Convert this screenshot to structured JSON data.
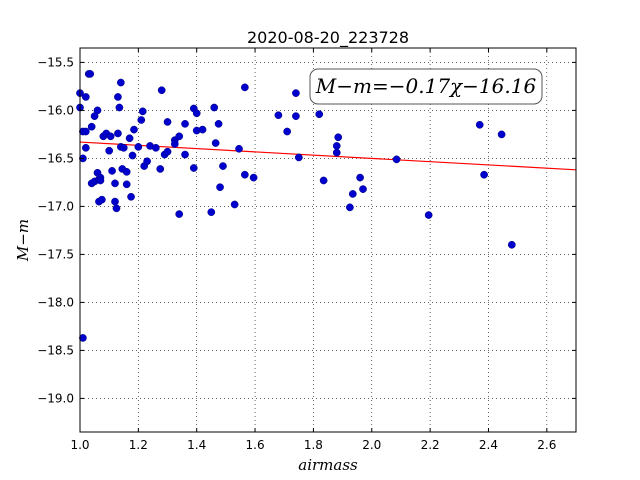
{
  "chart_data": {
    "type": "scatter",
    "title": "2020-08-20_223728",
    "xlabel": "airmass",
    "ylabel": "M−m",
    "xlim": [
      1.0,
      2.7
    ],
    "ylim": [
      -19.35,
      -15.35
    ],
    "y_inverted": false,
    "grid": true,
    "x_ticks": [
      1.0,
      1.2,
      1.4,
      1.6,
      1.8,
      2.0,
      2.2,
      2.4,
      2.6
    ],
    "x_tick_labels": [
      "1.0",
      "1.2",
      "1.4",
      "1.6",
      "1.8",
      "2.0",
      "2.2",
      "2.4",
      "2.6"
    ],
    "y_ticks": [
      -15.5,
      -16.0,
      -16.5,
      -17.0,
      -17.5,
      -18.0,
      -18.5,
      -19.0
    ],
    "y_tick_labels": [
      "−15.5",
      "−16.0",
      "−16.5",
      "−17.0",
      "−17.5",
      "−18.0",
      "−18.5",
      "−19.0"
    ],
    "annotation": "M−m=−0.17χ−16.16",
    "fit_line": {
      "slope": -0.17,
      "intercept": -16.16,
      "color": "#ff0000"
    },
    "point_color": "#0000cc",
    "points": [
      [
        1.0,
        -15.82
      ],
      [
        1.0,
        -15.97
      ],
      [
        1.01,
        -16.22
      ],
      [
        1.01,
        -16.5
      ],
      [
        1.01,
        -18.37
      ],
      [
        1.02,
        -15.86
      ],
      [
        1.02,
        -16.22
      ],
      [
        1.02,
        -16.39
      ],
      [
        1.03,
        -15.62
      ],
      [
        1.035,
        -15.62
      ],
      [
        1.04,
        -16.17
      ],
      [
        1.04,
        -16.76
      ],
      [
        1.05,
        -16.06
      ],
      [
        1.05,
        -16.74
      ],
      [
        1.06,
        -16.0
      ],
      [
        1.06,
        -16.65
      ],
      [
        1.065,
        -16.72
      ],
      [
        1.065,
        -16.95
      ],
      [
        1.07,
        -16.7
      ],
      [
        1.07,
        -16.73
      ],
      [
        1.075,
        -16.93
      ],
      [
        1.08,
        -16.27
      ],
      [
        1.09,
        -16.24
      ],
      [
        1.1,
        -16.42
      ],
      [
        1.105,
        -16.27
      ],
      [
        1.11,
        -16.63
      ],
      [
        1.12,
        -16.76
      ],
      [
        1.12,
        -16.95
      ],
      [
        1.125,
        -17.02
      ],
      [
        1.13,
        -15.86
      ],
      [
        1.13,
        -16.24
      ],
      [
        1.135,
        -15.97
      ],
      [
        1.14,
        -15.71
      ],
      [
        1.14,
        -16.38
      ],
      [
        1.145,
        -16.61
      ],
      [
        1.15,
        -16.39
      ],
      [
        1.16,
        -16.64
      ],
      [
        1.16,
        -16.77
      ],
      [
        1.17,
        -16.29
      ],
      [
        1.175,
        -16.9
      ],
      [
        1.18,
        -16.47
      ],
      [
        1.185,
        -16.2
      ],
      [
        1.2,
        -16.38
      ],
      [
        1.21,
        -16.1
      ],
      [
        1.215,
        -16.01
      ],
      [
        1.22,
        -16.58
      ],
      [
        1.23,
        -16.53
      ],
      [
        1.24,
        -16.37
      ],
      [
        1.26,
        -16.39
      ],
      [
        1.275,
        -16.61
      ],
      [
        1.28,
        -15.79
      ],
      [
        1.29,
        -16.46
      ],
      [
        1.3,
        -16.43
      ],
      [
        1.3,
        -16.12
      ],
      [
        1.325,
        -16.31
      ],
      [
        1.325,
        -16.35
      ],
      [
        1.34,
        -16.27
      ],
      [
        1.34,
        -17.08
      ],
      [
        1.36,
        -16.14
      ],
      [
        1.36,
        -16.46
      ],
      [
        1.39,
        -15.98
      ],
      [
        1.39,
        -16.6
      ],
      [
        1.4,
        -16.03
      ],
      [
        1.4,
        -16.21
      ],
      [
        1.42,
        -16.2
      ],
      [
        1.45,
        -17.06
      ],
      [
        1.46,
        -15.97
      ],
      [
        1.465,
        -16.34
      ],
      [
        1.475,
        -16.14
      ],
      [
        1.48,
        -16.8
      ],
      [
        1.49,
        -16.58
      ],
      [
        1.53,
        -16.98
      ],
      [
        1.545,
        -16.4
      ],
      [
        1.565,
        -15.76
      ],
      [
        1.565,
        -16.67
      ],
      [
        1.595,
        -16.7
      ],
      [
        1.68,
        -16.05
      ],
      [
        1.71,
        -16.22
      ],
      [
        1.74,
        -15.82
      ],
      [
        1.74,
        -16.06
      ],
      [
        1.75,
        -16.49
      ],
      [
        1.82,
        -16.04
      ],
      [
        1.835,
        -16.73
      ],
      [
        1.88,
        -16.37
      ],
      [
        1.88,
        -16.44
      ],
      [
        1.885,
        -16.28
      ],
      [
        1.925,
        -17.01
      ],
      [
        1.935,
        -16.87
      ],
      [
        1.96,
        -16.7
      ],
      [
        1.97,
        -16.82
      ],
      [
        2.085,
        -16.51
      ],
      [
        2.195,
        -17.09
      ],
      [
        2.37,
        -16.15
      ],
      [
        2.385,
        -16.67
      ],
      [
        2.445,
        -16.25
      ],
      [
        2.48,
        -17.4
      ]
    ]
  }
}
